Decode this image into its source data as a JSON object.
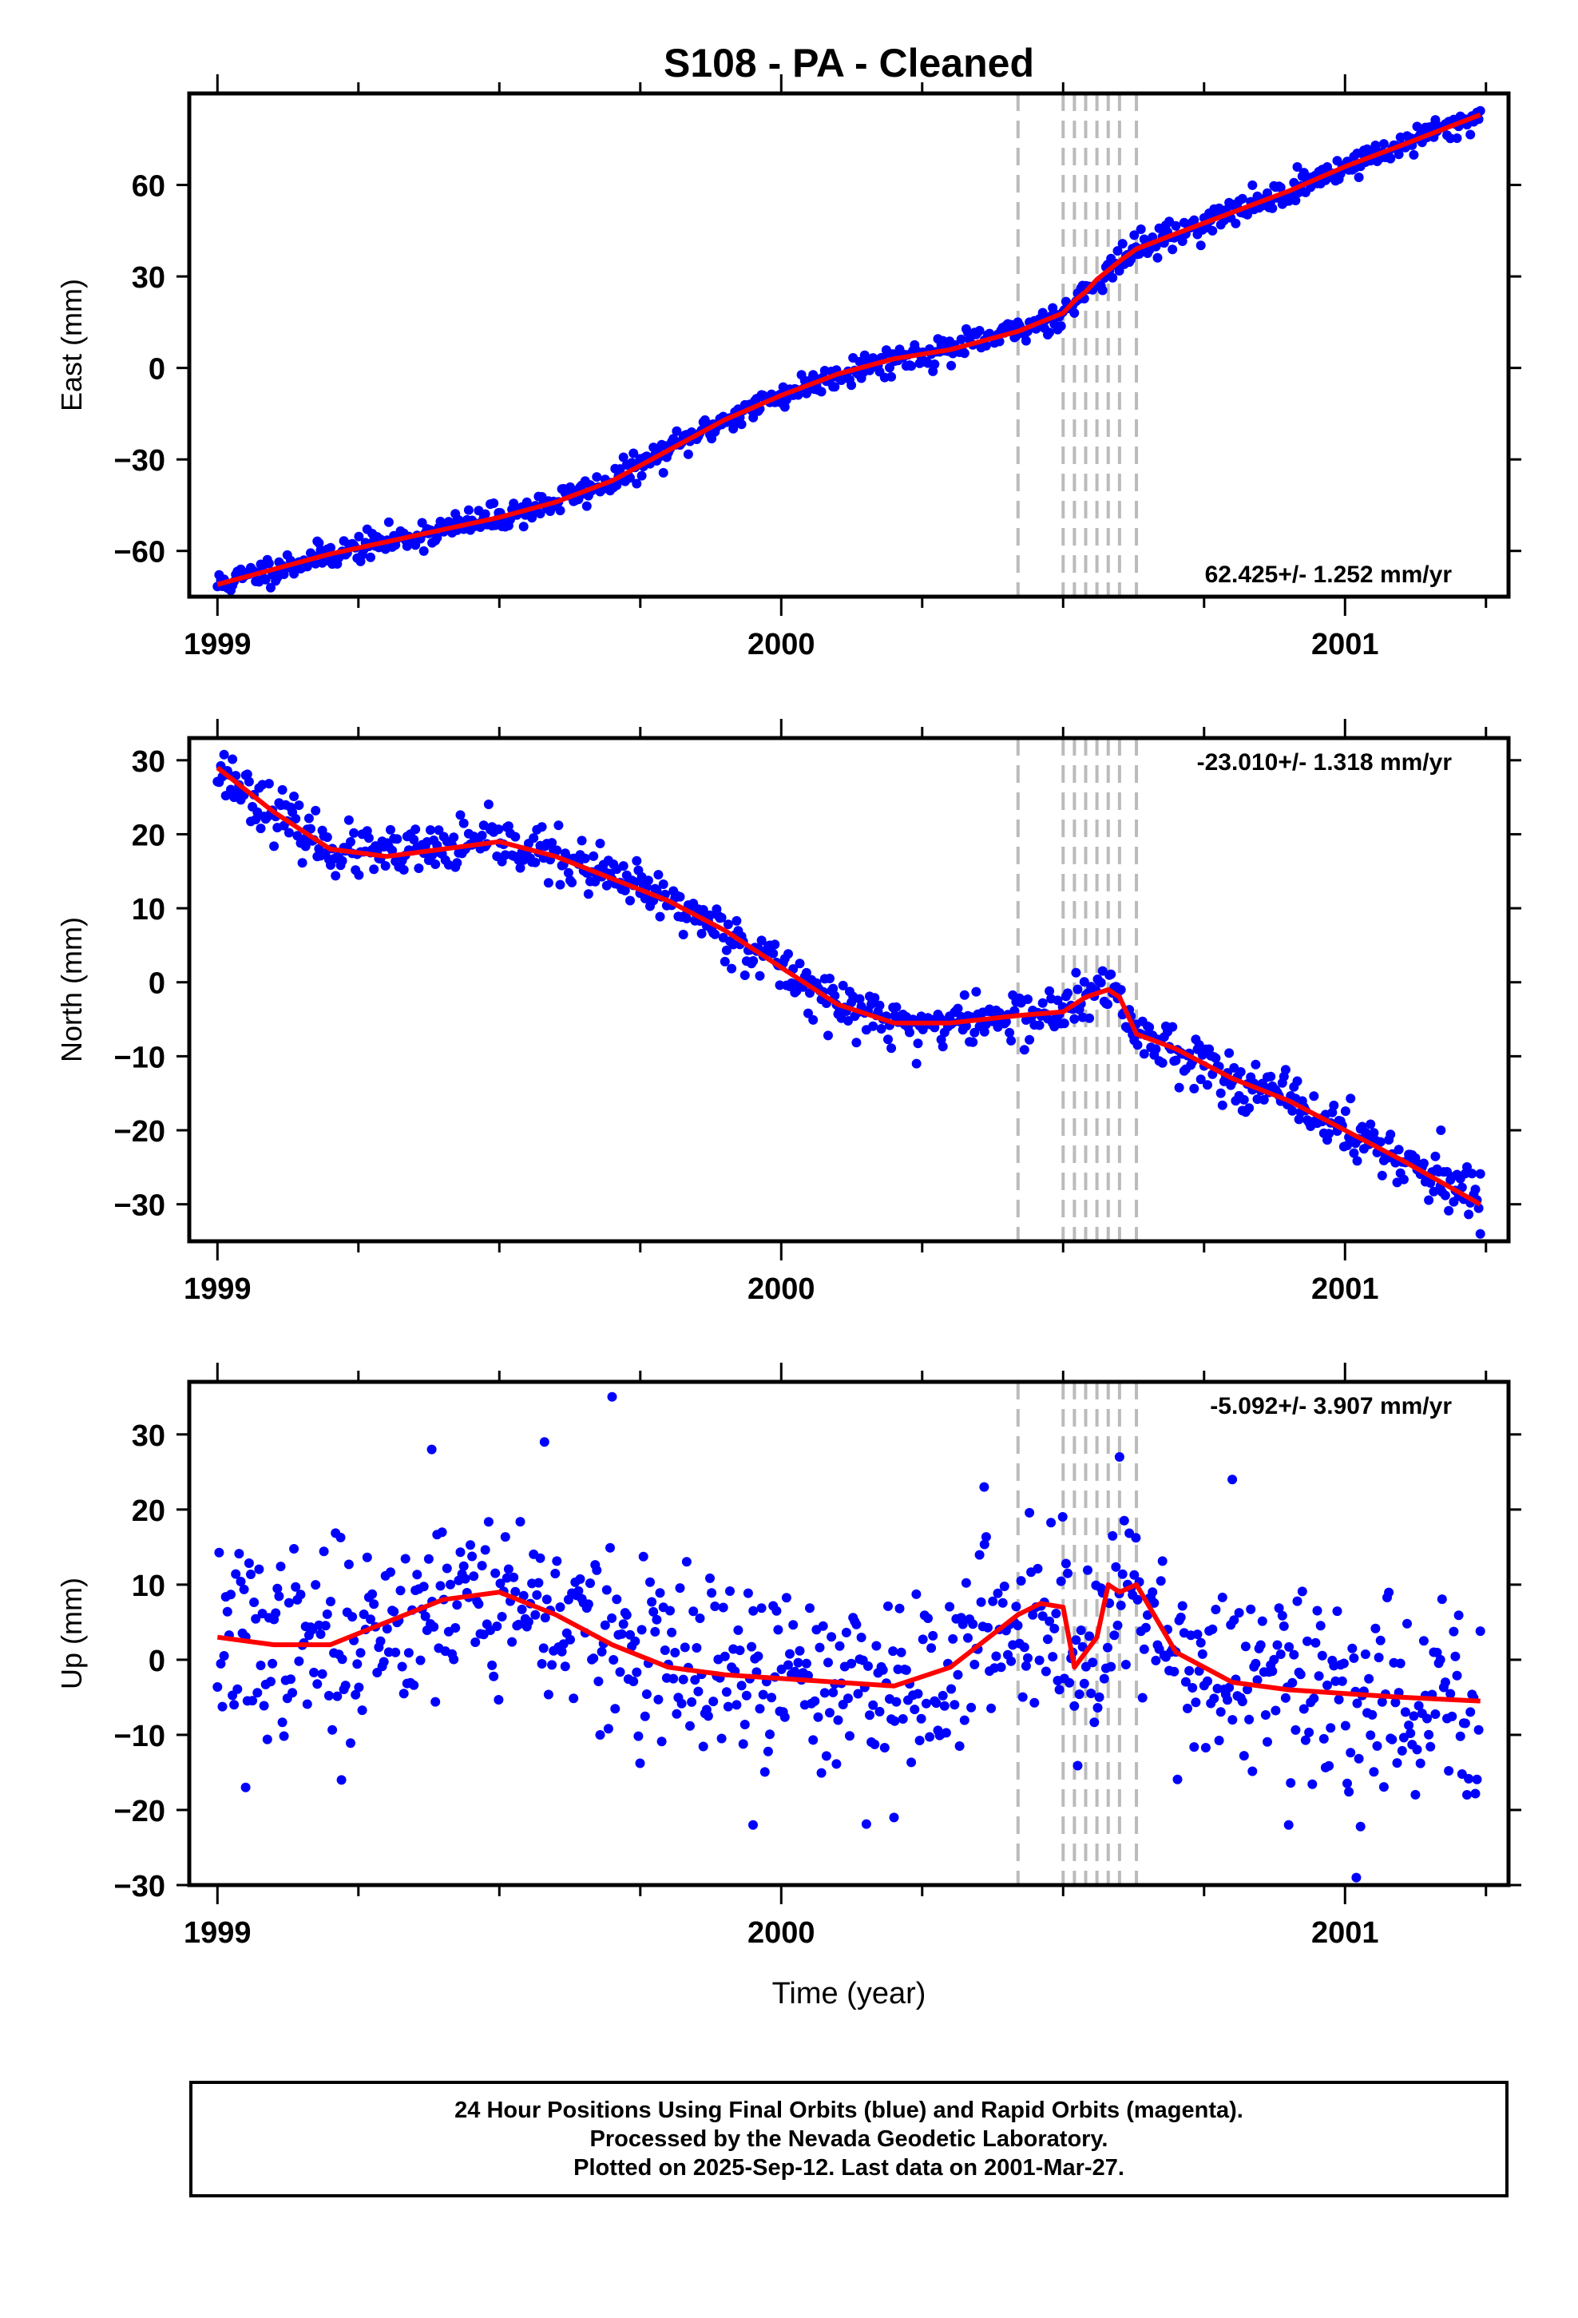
{
  "title": "S108  - PA - Cleaned",
  "footer": {
    "line1": "24 Hour Positions Using Final Orbits (blue) and Rapid Orbits (magenta).",
    "line2": "Processed by the Nevada Geodetic Laboratory.",
    "line3": "Plotted on 2025-Sep-12. Last data on 2001-Mar-27."
  },
  "colors": {
    "points": "#0000ff",
    "model": "#ff0000",
    "steps": "#bbbbbb",
    "frame": "#000000"
  },
  "chart_data": [
    {
      "type": "scatter",
      "component": "East",
      "ylabel": "East (mm)",
      "xlabel": "",
      "xlim": [
        1998.95,
        2001.29
      ],
      "ylim": [
        -75,
        90
      ],
      "yticks": [
        -60,
        -30,
        0,
        30,
        60
      ],
      "xticks": [
        1999,
        2000,
        2001
      ],
      "xtick_labels": [
        "1999",
        "2000",
        "2001"
      ],
      "rate": "62.425+/- 1.252 mm/yr",
      "rate_position": "bottom-right",
      "steps": [
        2000.42,
        2000.5,
        2000.52,
        2000.54,
        2000.56,
        2000.58,
        2000.6,
        2000.63
      ],
      "noise": 2.3,
      "seed": 11,
      "outliers": [],
      "model": {
        "x": [
          1999.0,
          1999.1,
          1999.2,
          1999.3,
          1999.4,
          1999.5,
          1999.6,
          1999.7,
          1999.8,
          1999.9,
          2000.0,
          2000.1,
          2000.2,
          2000.3,
          2000.42,
          2000.46,
          2000.5,
          2000.52,
          2000.54,
          2000.56,
          2000.58,
          2000.6,
          2000.63,
          2000.7,
          2000.8,
          2000.9,
          2001.0,
          2001.1,
          2001.24
        ],
        "y": [
          -71,
          -66,
          -61,
          -57,
          -53,
          -49,
          -44,
          -37,
          -27,
          -17,
          -9,
          -2,
          3,
          6,
          12,
          15,
          18,
          22,
          25,
          29,
          32,
          35,
          39,
          44,
          51,
          58,
          66,
          73,
          83
        ]
      }
    },
    {
      "type": "scatter",
      "component": "North",
      "ylabel": "North (mm)",
      "xlabel": "",
      "xlim": [
        1998.95,
        2001.29
      ],
      "ylim": [
        -35,
        33
      ],
      "yticks": [
        -30,
        -20,
        -10,
        0,
        10,
        20,
        30
      ],
      "xticks": [
        1999,
        2000,
        2001
      ],
      "xtick_labels": [
        "1999",
        "2000",
        "2001"
      ],
      "rate": "-23.010+/- 1.318 mm/yr",
      "rate_position": "top-right",
      "steps": [
        2000.42,
        2000.5,
        2000.52,
        2000.54,
        2000.56,
        2000.58,
        2000.6,
        2000.63
      ],
      "noise": 1.7,
      "seed": 23,
      "outliers": [
        [
          2000.24,
          -11
        ],
        [
          2001.17,
          -20
        ],
        [
          2001.24,
          -34
        ]
      ],
      "model": {
        "x": [
          1999.0,
          1999.1,
          1999.2,
          1999.3,
          1999.4,
          1999.5,
          1999.6,
          1999.7,
          1999.8,
          1999.9,
          2000.0,
          2000.1,
          2000.2,
          2000.3,
          2000.42,
          2000.5,
          2000.52,
          2000.54,
          2000.56,
          2000.58,
          2000.6,
          2000.63,
          2000.7,
          2000.8,
          2000.9,
          2001.0,
          2001.1,
          2001.24
        ],
        "y": [
          29,
          23,
          18,
          17,
          18,
          19,
          17,
          14,
          11,
          7,
          2,
          -3,
          -5.5,
          -5.5,
          -4.5,
          -4,
          -3,
          -2,
          -1.5,
          -1,
          -2,
          -7,
          -9,
          -13,
          -16,
          -20,
          -24,
          -30
        ]
      }
    },
    {
      "type": "scatter",
      "component": "Up",
      "ylabel": "Up (mm)",
      "xlabel": "Time (year)",
      "xlim": [
        1998.95,
        2001.29
      ],
      "ylim": [
        -30,
        37
      ],
      "yticks": [
        -30,
        -20,
        -10,
        0,
        10,
        20,
        30
      ],
      "xticks": [
        1999,
        2000,
        2001
      ],
      "xtick_labels": [
        "1999",
        "2000",
        "2001"
      ],
      "rate": "-5.092+/- 3.907 mm/yr",
      "rate_position": "top-right",
      "steps": [
        2000.42,
        2000.5,
        2000.52,
        2000.54,
        2000.56,
        2000.58,
        2000.6,
        2000.63
      ],
      "noise": 6.0,
      "seed": 37,
      "outliers": [
        [
          1999.7,
          35
        ],
        [
          1999.58,
          29
        ],
        [
          1999.38,
          28
        ],
        [
          2000.36,
          23
        ],
        [
          2000.8,
          24
        ],
        [
          2000.9,
          -22
        ],
        [
          2001.02,
          -29
        ],
        [
          1999.95,
          -22
        ],
        [
          2000.2,
          -21
        ],
        [
          1999.05,
          -17
        ],
        [
          1999.22,
          -16
        ],
        [
          2000.6,
          27
        ]
      ],
      "model": {
        "x": [
          1999.0,
          1999.1,
          1999.2,
          1999.3,
          1999.4,
          1999.5,
          1999.6,
          1999.7,
          1999.8,
          1999.9,
          2000.0,
          2000.1,
          2000.2,
          2000.3,
          2000.42,
          2000.46,
          2000.5,
          2000.52,
          2000.54,
          2000.56,
          2000.58,
          2000.6,
          2000.63,
          2000.7,
          2000.8,
          2000.9,
          2001.0,
          2001.1,
          2001.24
        ],
        "y": [
          3,
          2,
          2,
          5,
          8,
          9,
          6,
          2,
          -1,
          -2,
          -2.5,
          -3,
          -3.5,
          -1,
          6,
          7.5,
          7,
          -1,
          1,
          3,
          10,
          9,
          10,
          1,
          -3,
          -4,
          -4.5,
          -5,
          -5.5
        ]
      }
    }
  ]
}
